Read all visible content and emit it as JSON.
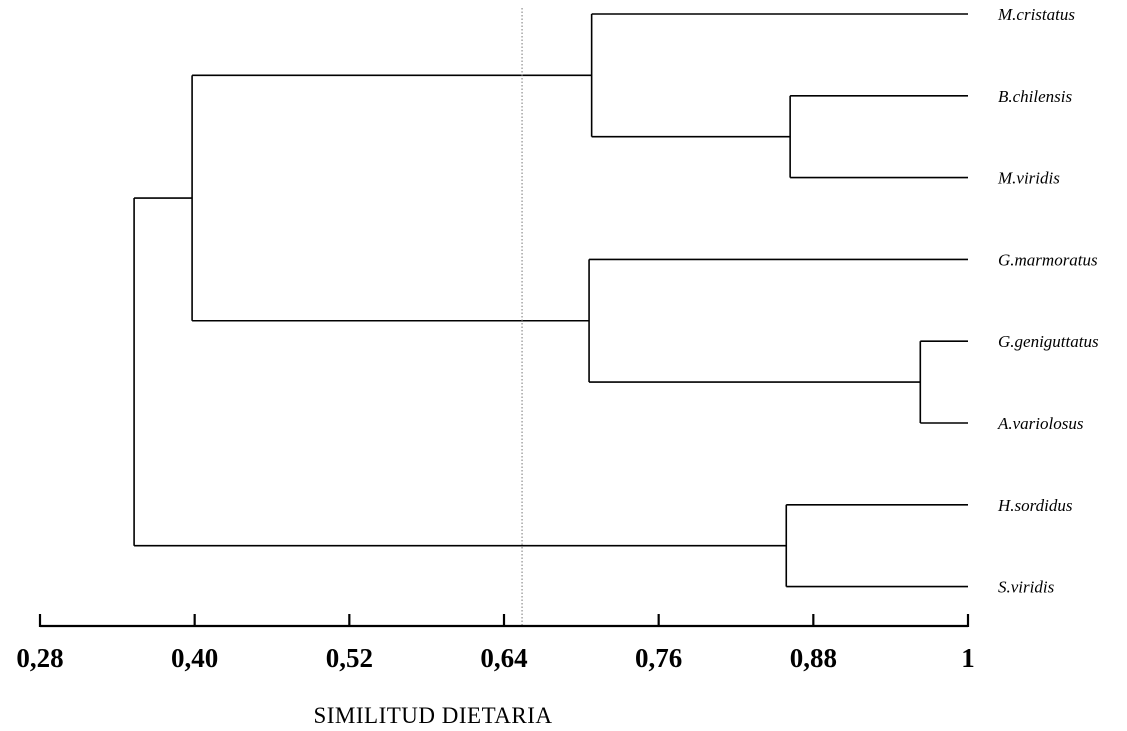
{
  "dendrogram": {
    "axis_title": "SIMILITUD DIETARIA",
    "axis_range": [
      0.28,
      1
    ],
    "ticks": [
      {
        "value": 0.28,
        "label": "0,28"
      },
      {
        "value": 0.4,
        "label": "0,40"
      },
      {
        "value": 0.52,
        "label": "0,52"
      },
      {
        "value": 0.64,
        "label": "0,64"
      },
      {
        "value": 0.76,
        "label": "0,76"
      },
      {
        "value": 0.88,
        "label": "0,88"
      },
      {
        "value": 1,
        "label": "1"
      }
    ],
    "reference_line_value": 0.654,
    "leaves": [
      "M.cristatus",
      "B.chilensis",
      "M.viridis",
      "G.marmoratus",
      "G.geniguttatus",
      "A.variolosus",
      "H.sordidus",
      "S.viridis"
    ],
    "merges": [
      {
        "id": "m1",
        "children": [
          "leaf:1",
          "leaf:2"
        ],
        "similarity": 0.862
      },
      {
        "id": "m2",
        "children": [
          "leaf:0",
          "node:m1"
        ],
        "similarity": 0.708
      },
      {
        "id": "m3",
        "children": [
          "leaf:4",
          "leaf:5"
        ],
        "similarity": 0.963
      },
      {
        "id": "m4",
        "children": [
          "leaf:3",
          "node:m3"
        ],
        "similarity": 0.706
      },
      {
        "id": "m5",
        "children": [
          "node:m2",
          "node:m4"
        ],
        "similarity": 0.398
      },
      {
        "id": "m6",
        "children": [
          "leaf:6",
          "leaf:7"
        ],
        "similarity": 0.859
      },
      {
        "id": "m7",
        "children": [
          "node:m5",
          "node:m6"
        ],
        "similarity": 0.353
      }
    ]
  }
}
